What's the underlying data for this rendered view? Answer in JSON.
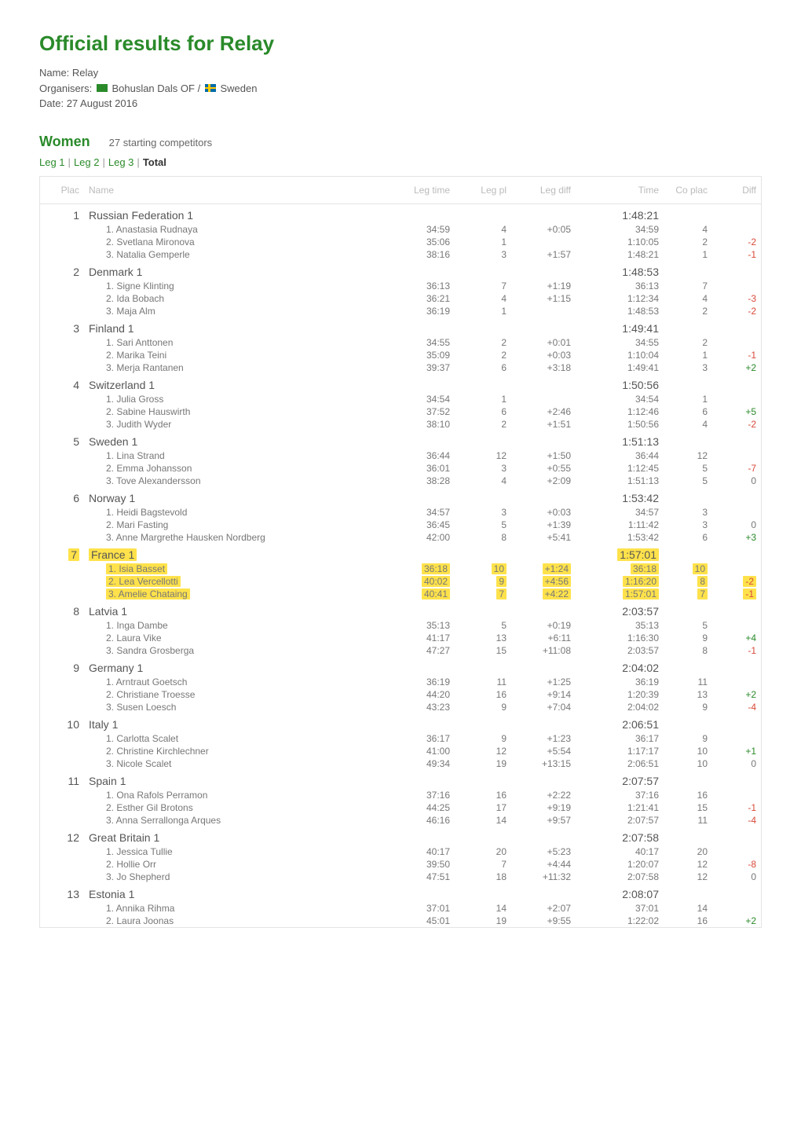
{
  "page_title": "Official results for Relay",
  "meta": {
    "name_label": "Name:",
    "name_value": "Relay",
    "organisers_label": "Organisers:",
    "organisers_club": "Bohuslan Dals OF",
    "organisers_sep": "/",
    "organisers_country": "Sweden",
    "date_label": "Date:",
    "date_value": "27 August 2016"
  },
  "class": {
    "name": "Women",
    "competitors": "27 starting competitors"
  },
  "legs": {
    "items": [
      "Leg 1",
      "Leg 2",
      "Leg 3",
      "Total"
    ],
    "current_index": 3
  },
  "columns": {
    "plac": "Plac",
    "name": "Name",
    "legtime": "Leg time",
    "legpl": "Leg pl",
    "legdiff": "Leg diff",
    "time": "Time",
    "coplac": "Co plac",
    "diff": "Diff"
  },
  "teams": [
    {
      "place": "1",
      "name": "Russian Federation 1",
      "time": "1:48:21",
      "highlight": false,
      "runners": [
        {
          "name": "1. Anastasia Rudnaya",
          "legtime": "34:59",
          "legpl": "4",
          "legdiff": "+0:05",
          "time": "34:59",
          "coplac": "4",
          "diff": ""
        },
        {
          "name": "2. Svetlana Mironova",
          "legtime": "35:06",
          "legpl": "1",
          "legdiff": "",
          "time": "1:10:05",
          "coplac": "2",
          "diff": "-2"
        },
        {
          "name": "3. Natalia Gemperle",
          "legtime": "38:16",
          "legpl": "3",
          "legdiff": "+1:57",
          "time": "1:48:21",
          "coplac": "1",
          "diff": "-1"
        }
      ]
    },
    {
      "place": "2",
      "name": "Denmark 1",
      "time": "1:48:53",
      "highlight": false,
      "runners": [
        {
          "name": "1. Signe Klinting",
          "legtime": "36:13",
          "legpl": "7",
          "legdiff": "+1:19",
          "time": "36:13",
          "coplac": "7",
          "diff": ""
        },
        {
          "name": "2. Ida Bobach",
          "legtime": "36:21",
          "legpl": "4",
          "legdiff": "+1:15",
          "time": "1:12:34",
          "coplac": "4",
          "diff": "-3"
        },
        {
          "name": "3. Maja Alm",
          "legtime": "36:19",
          "legpl": "1",
          "legdiff": "",
          "time": "1:48:53",
          "coplac": "2",
          "diff": "-2"
        }
      ]
    },
    {
      "place": "3",
      "name": "Finland 1",
      "time": "1:49:41",
      "highlight": false,
      "runners": [
        {
          "name": "1. Sari Anttonen",
          "legtime": "34:55",
          "legpl": "2",
          "legdiff": "+0:01",
          "time": "34:55",
          "coplac": "2",
          "diff": ""
        },
        {
          "name": "2. Marika Teini",
          "legtime": "35:09",
          "legpl": "2",
          "legdiff": "+0:03",
          "time": "1:10:04",
          "coplac": "1",
          "diff": "-1"
        },
        {
          "name": "3. Merja Rantanen",
          "legtime": "39:37",
          "legpl": "6",
          "legdiff": "+3:18",
          "time": "1:49:41",
          "coplac": "3",
          "diff": "+2"
        }
      ]
    },
    {
      "place": "4",
      "name": "Switzerland 1",
      "time": "1:50:56",
      "highlight": false,
      "runners": [
        {
          "name": "1. Julia Gross",
          "legtime": "34:54",
          "legpl": "1",
          "legdiff": "",
          "time": "34:54",
          "coplac": "1",
          "diff": ""
        },
        {
          "name": "2. Sabine Hauswirth",
          "legtime": "37:52",
          "legpl": "6",
          "legdiff": "+2:46",
          "time": "1:12:46",
          "coplac": "6",
          "diff": "+5"
        },
        {
          "name": "3. Judith Wyder",
          "legtime": "38:10",
          "legpl": "2",
          "legdiff": "+1:51",
          "time": "1:50:56",
          "coplac": "4",
          "diff": "-2"
        }
      ]
    },
    {
      "place": "5",
      "name": "Sweden 1",
      "time": "1:51:13",
      "highlight": false,
      "runners": [
        {
          "name": "1. Lina Strand",
          "legtime": "36:44",
          "legpl": "12",
          "legdiff": "+1:50",
          "time": "36:44",
          "coplac": "12",
          "diff": ""
        },
        {
          "name": "2. Emma Johansson",
          "legtime": "36:01",
          "legpl": "3",
          "legdiff": "+0:55",
          "time": "1:12:45",
          "coplac": "5",
          "diff": "-7"
        },
        {
          "name": "3. Tove Alexandersson",
          "legtime": "38:28",
          "legpl": "4",
          "legdiff": "+2:09",
          "time": "1:51:13",
          "coplac": "5",
          "diff": "0"
        }
      ]
    },
    {
      "place": "6",
      "name": "Norway 1",
      "time": "1:53:42",
      "highlight": false,
      "runners": [
        {
          "name": "1. Heidi Bagstevold",
          "legtime": "34:57",
          "legpl": "3",
          "legdiff": "+0:03",
          "time": "34:57",
          "coplac": "3",
          "diff": ""
        },
        {
          "name": "2. Mari Fasting",
          "legtime": "36:45",
          "legpl": "5",
          "legdiff": "+1:39",
          "time": "1:11:42",
          "coplac": "3",
          "diff": "0"
        },
        {
          "name": "3. Anne Margrethe Hausken Nordberg",
          "legtime": "42:00",
          "legpl": "8",
          "legdiff": "+5:41",
          "time": "1:53:42",
          "coplac": "6",
          "diff": "+3"
        }
      ]
    },
    {
      "place": "7",
      "name": "France 1",
      "time": "1:57:01",
      "highlight": true,
      "runners": [
        {
          "name": "1. Isia Basset",
          "legtime": "36:18",
          "legpl": "10",
          "legdiff": "+1:24",
          "time": "36:18",
          "coplac": "10",
          "diff": ""
        },
        {
          "name": "2. Lea Vercellotti",
          "legtime": "40:02",
          "legpl": "9",
          "legdiff": "+4:56",
          "time": "1:16:20",
          "coplac": "8",
          "diff": "-2"
        },
        {
          "name": "3. Amelie Chataing",
          "legtime": "40:41",
          "legpl": "7",
          "legdiff": "+4:22",
          "time": "1:57:01",
          "coplac": "7",
          "diff": "-1"
        }
      ]
    },
    {
      "place": "8",
      "name": "Latvia 1",
      "time": "2:03:57",
      "highlight": false,
      "runners": [
        {
          "name": "1. Inga Dambe",
          "legtime": "35:13",
          "legpl": "5",
          "legdiff": "+0:19",
          "time": "35:13",
          "coplac": "5",
          "diff": ""
        },
        {
          "name": "2. Laura Vike",
          "legtime": "41:17",
          "legpl": "13",
          "legdiff": "+6:11",
          "time": "1:16:30",
          "coplac": "9",
          "diff": "+4"
        },
        {
          "name": "3. Sandra Grosberga",
          "legtime": "47:27",
          "legpl": "15",
          "legdiff": "+11:08",
          "time": "2:03:57",
          "coplac": "8",
          "diff": "-1"
        }
      ]
    },
    {
      "place": "9",
      "name": "Germany 1",
      "time": "2:04:02",
      "highlight": false,
      "runners": [
        {
          "name": "1. Arntraut Goetsch",
          "legtime": "36:19",
          "legpl": "11",
          "legdiff": "+1:25",
          "time": "36:19",
          "coplac": "11",
          "diff": ""
        },
        {
          "name": "2. Christiane Troesse",
          "legtime": "44:20",
          "legpl": "16",
          "legdiff": "+9:14",
          "time": "1:20:39",
          "coplac": "13",
          "diff": "+2"
        },
        {
          "name": "3. Susen Loesch",
          "legtime": "43:23",
          "legpl": "9",
          "legdiff": "+7:04",
          "time": "2:04:02",
          "coplac": "9",
          "diff": "-4"
        }
      ]
    },
    {
      "place": "10",
      "name": "Italy 1",
      "time": "2:06:51",
      "highlight": false,
      "runners": [
        {
          "name": "1. Carlotta Scalet",
          "legtime": "36:17",
          "legpl": "9",
          "legdiff": "+1:23",
          "time": "36:17",
          "coplac": "9",
          "diff": ""
        },
        {
          "name": "2. Christine Kirchlechner",
          "legtime": "41:00",
          "legpl": "12",
          "legdiff": "+5:54",
          "time": "1:17:17",
          "coplac": "10",
          "diff": "+1"
        },
        {
          "name": "3. Nicole Scalet",
          "legtime": "49:34",
          "legpl": "19",
          "legdiff": "+13:15",
          "time": "2:06:51",
          "coplac": "10",
          "diff": "0"
        }
      ]
    },
    {
      "place": "11",
      "name": "Spain 1",
      "time": "2:07:57",
      "highlight": false,
      "runners": [
        {
          "name": "1. Ona Rafols Perramon",
          "legtime": "37:16",
          "legpl": "16",
          "legdiff": "+2:22",
          "time": "37:16",
          "coplac": "16",
          "diff": ""
        },
        {
          "name": "2. Esther Gil Brotons",
          "legtime": "44:25",
          "legpl": "17",
          "legdiff": "+9:19",
          "time": "1:21:41",
          "coplac": "15",
          "diff": "-1"
        },
        {
          "name": "3. Anna Serrallonga Arques",
          "legtime": "46:16",
          "legpl": "14",
          "legdiff": "+9:57",
          "time": "2:07:57",
          "coplac": "11",
          "diff": "-4"
        }
      ]
    },
    {
      "place": "12",
      "name": "Great Britain 1",
      "time": "2:07:58",
      "highlight": false,
      "runners": [
        {
          "name": "1. Jessica Tullie",
          "legtime": "40:17",
          "legpl": "20",
          "legdiff": "+5:23",
          "time": "40:17",
          "coplac": "20",
          "diff": ""
        },
        {
          "name": "2. Hollie Orr",
          "legtime": "39:50",
          "legpl": "7",
          "legdiff": "+4:44",
          "time": "1:20:07",
          "coplac": "12",
          "diff": "-8"
        },
        {
          "name": "3. Jo Shepherd",
          "legtime": "47:51",
          "legpl": "18",
          "legdiff": "+11:32",
          "time": "2:07:58",
          "coplac": "12",
          "diff": "0"
        }
      ]
    },
    {
      "place": "13",
      "name": "Estonia 1",
      "time": "2:08:07",
      "highlight": false,
      "runners": [
        {
          "name": "1. Annika Rihma",
          "legtime": "37:01",
          "legpl": "14",
          "legdiff": "+2:07",
          "time": "37:01",
          "coplac": "14",
          "diff": ""
        },
        {
          "name": "2. Laura Joonas",
          "legtime": "45:01",
          "legpl": "19",
          "legdiff": "+9:55",
          "time": "1:22:02",
          "coplac": "16",
          "diff": "+2"
        }
      ]
    }
  ]
}
